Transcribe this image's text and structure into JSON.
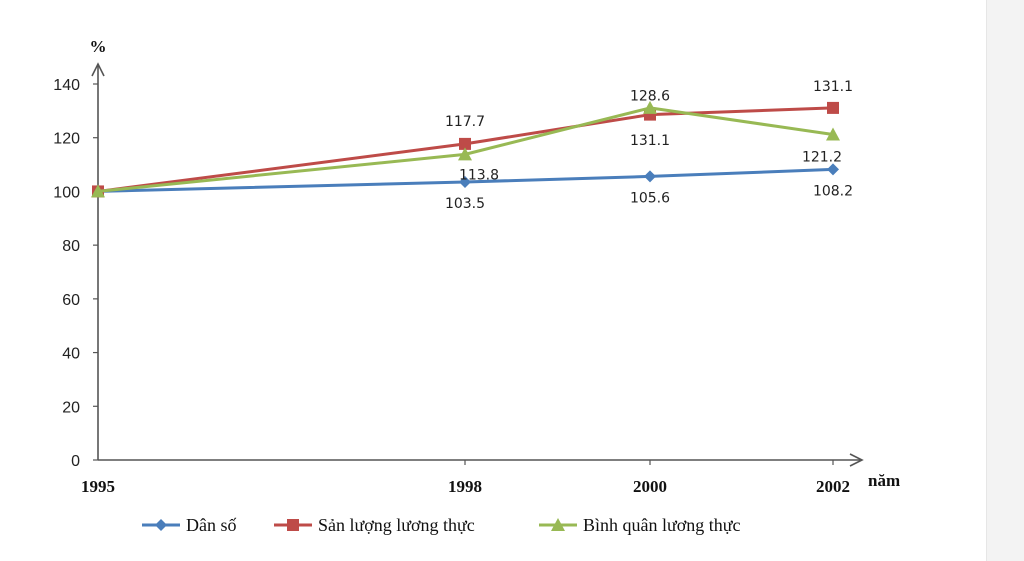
{
  "chart_data": {
    "type": "line",
    "x": [
      "1995",
      "1998",
      "2000",
      "2002"
    ],
    "ylabel": "%",
    "xlabel": "năm",
    "ylim": [
      0,
      140
    ],
    "yticks": [
      "0",
      "20",
      "40",
      "60",
      "80",
      "100",
      "120",
      "140"
    ],
    "grid": false,
    "legend_position": "bottom",
    "series": [
      {
        "name": "Dân số",
        "values": [
          100,
          103.5,
          105.6,
          108.2
        ],
        "color": "#4a7ebb",
        "marker": "diamond",
        "labels": [
          "",
          "103.5",
          "105.6",
          "108.2"
        ]
      },
      {
        "name": "Sản lượng lương thực",
        "values": [
          100,
          117.7,
          128.6,
          131.1
        ],
        "color": "#be4b48",
        "marker": "square",
        "labels": [
          "",
          "117.7",
          "128.6",
          "131.1"
        ]
      },
      {
        "name": "Bình quân lương thực",
        "values": [
          100,
          113.8,
          131.1,
          121.2
        ],
        "color": "#98b954",
        "marker": "triangle",
        "labels": [
          "",
          "113.8",
          "131.1",
          "121.2"
        ]
      }
    ]
  }
}
